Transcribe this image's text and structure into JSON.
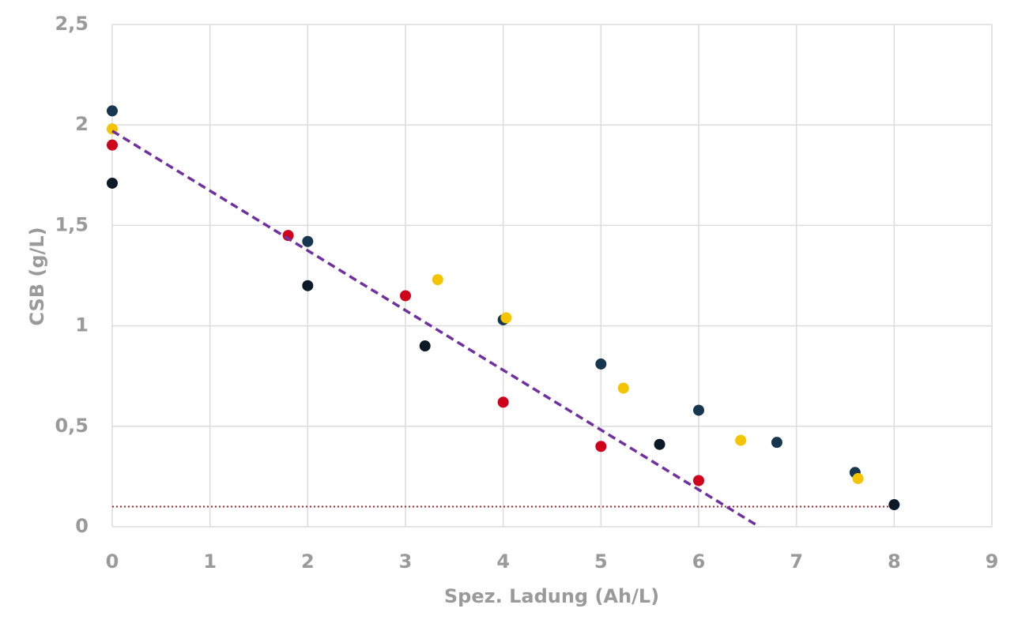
{
  "chart_data": {
    "type": "scatter",
    "x_label": "Spez. Ladung (Ah/L)",
    "y_label": "CSB (g/L)",
    "xlim": [
      0,
      9
    ],
    "xticks": [
      0,
      1,
      2,
      3,
      4,
      5,
      6,
      7,
      8,
      9
    ],
    "ylim": [
      0,
      2.5
    ],
    "yticks": [
      0,
      {
        "value": 0.5,
        "label": "0,5"
      },
      1,
      {
        "value": 1.5,
        "label": "1,5"
      },
      2,
      {
        "value": 2.5,
        "label": "2,5"
      }
    ],
    "grid": true,
    "series": [
      {
        "color": "#0b1a26",
        "x": [
          0,
          2,
          3.2,
          5.6,
          8
        ],
        "values": [
          1.71,
          1.2,
          0.9,
          0.41,
          0.11
        ]
      },
      {
        "color": "#17364f",
        "x": [
          0,
          2,
          4,
          5,
          6,
          6.8,
          7.6
        ],
        "values": [
          2.07,
          1.42,
          1.03,
          0.81,
          0.58,
          0.42,
          0.27
        ]
      },
      {
        "color": "#d0021b",
        "x": [
          0,
          1.8,
          3,
          4,
          5,
          6
        ],
        "values": [
          1.9,
          1.45,
          1.15,
          0.62,
          0.4,
          0.23
        ]
      },
      {
        "color": "#f5c400",
        "x": [
          0,
          3.33,
          4.03,
          5.23,
          6.43,
          7.63
        ],
        "values": [
          1.98,
          1.23,
          1.04,
          0.69,
          0.43,
          0.24
        ]
      }
    ],
    "trendline": {
      "color": "#7030a0",
      "x": [
        0,
        6.62
      ],
      "values": [
        1.97,
        0
      ]
    },
    "threshold": {
      "color": "#a0282d",
      "x": [
        0,
        8
      ],
      "values": [
        0.1,
        0.1
      ]
    }
  }
}
